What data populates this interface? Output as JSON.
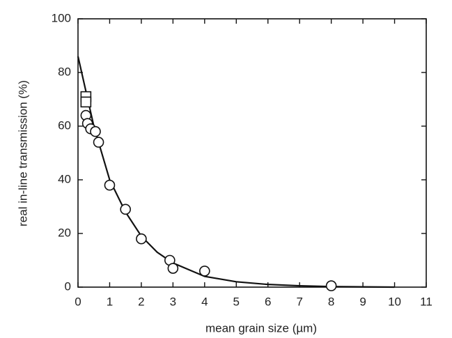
{
  "chart_data": {
    "type": "scatter",
    "x_label": "mean grain size (µm)",
    "y_label": "real in-line transmission (%)",
    "xlim": [
      0,
      11
    ],
    "xticks": [
      0,
      1,
      2,
      3,
      4,
      5,
      6,
      7,
      8,
      9,
      10,
      11
    ],
    "ylim": [
      0,
      100
    ],
    "yticks": [
      0,
      20,
      40,
      60,
      80,
      100
    ],
    "series": [
      {
        "marker": "circle",
        "color": "#111111",
        "x": [
          0.25,
          0.3,
          0.4,
          0.55,
          0.65,
          1.0,
          1.5,
          2.0,
          2.9,
          3.0,
          4.0,
          8.0
        ],
        "values": [
          64,
          61,
          59,
          58,
          54,
          38,
          29,
          18,
          10,
          7,
          6,
          0.5
        ]
      },
      {
        "marker": "square",
        "color": "#111111",
        "x": [
          0.25,
          0.25
        ],
        "values": [
          71,
          69
        ]
      },
      {
        "marker": "line",
        "color": "#111111",
        "x": [
          0,
          0.5,
          1,
          1.5,
          2,
          2.5,
          3,
          4,
          5,
          6,
          7,
          8,
          9,
          10
        ],
        "values": [
          86,
          60,
          40,
          28,
          19,
          13,
          9,
          4,
          2,
          1,
          0.5,
          0.2,
          0.1,
          0
        ]
      }
    ]
  }
}
